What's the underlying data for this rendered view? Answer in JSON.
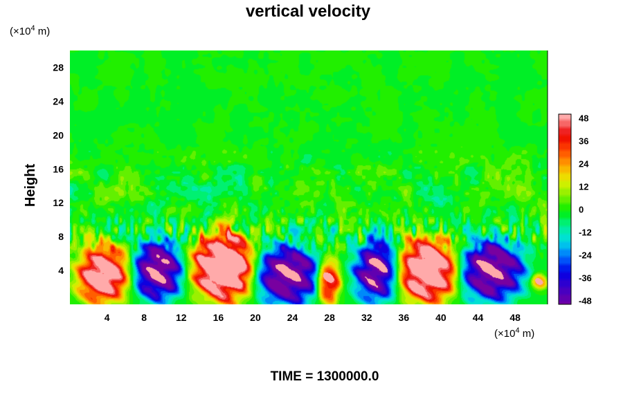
{
  "chart_data": {
    "type": "heatmap",
    "title": "vertical velocity",
    "ylabel": "Height",
    "xlabel": "",
    "x_unit_prefix": "(×10",
    "x_unit_exp": "4",
    "x_unit_suffix": " m)",
    "y_unit_prefix": "(×10",
    "y_unit_exp": "4",
    "y_unit_suffix": " m)",
    "xlim": [
      0,
      51.5
    ],
    "ylim": [
      0,
      30
    ],
    "x_ticks": [
      4,
      8,
      12,
      16,
      20,
      24,
      28,
      32,
      36,
      40,
      44,
      48
    ],
    "y_ticks": [
      4,
      8,
      12,
      16,
      20,
      24,
      28
    ],
    "colorbar": {
      "range": [
        -50,
        50
      ],
      "ticks": [
        48,
        36,
        24,
        12,
        0,
        -12,
        -24,
        -36,
        -48
      ]
    },
    "features": [
      {
        "kind": "updraft",
        "x": 3.5,
        "y": 3.5,
        "rx": 2.8,
        "ry": 3.5,
        "amp": 55
      },
      {
        "kind": "downdraft",
        "x": 9.5,
        "y": 4.0,
        "rx": 2.6,
        "ry": 3.6,
        "amp": -55
      },
      {
        "kind": "updraft",
        "x": 16.5,
        "y": 4.5,
        "rx": 3.3,
        "ry": 4.2,
        "amp": 65
      },
      {
        "kind": "downdraft",
        "x": 23.5,
        "y": 3.5,
        "rx": 3.5,
        "ry": 3.6,
        "amp": -55
      },
      {
        "kind": "updraft",
        "x": 27.8,
        "y": 2.8,
        "rx": 1.3,
        "ry": 2.6,
        "amp": 45
      },
      {
        "kind": "downdraft",
        "x": 33.0,
        "y": 4.0,
        "rx": 2.5,
        "ry": 3.8,
        "amp": -50
      },
      {
        "kind": "updraft",
        "x": 38.5,
        "y": 4.0,
        "rx": 3.3,
        "ry": 3.8,
        "amp": 60
      },
      {
        "kind": "downdraft",
        "x": 45.5,
        "y": 4.0,
        "rx": 3.5,
        "ry": 3.7,
        "amp": -55
      },
      {
        "kind": "updraft",
        "x": 50.5,
        "y": 2.7,
        "rx": 0.9,
        "ry": 1.0,
        "amp": 25
      }
    ]
  },
  "footer": {
    "time_label": "TIME = 1300000.0"
  }
}
